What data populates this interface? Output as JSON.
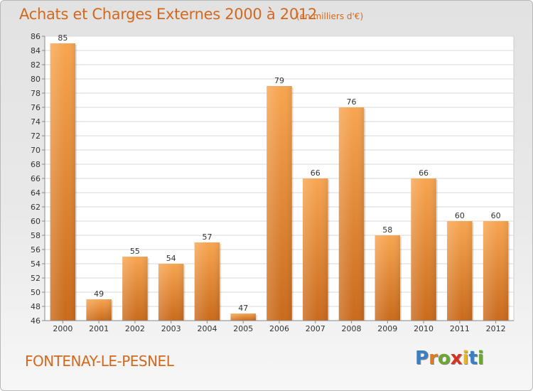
{
  "header": {
    "title": "Achats et Charges Externes 2000 à 2012",
    "subtitle": "(en milliers d'€)"
  },
  "footer": {
    "town": "FONTENAY-LE-PESNEL",
    "logo": [
      "P",
      "r",
      "o",
      "x",
      "i",
      "t",
      "i"
    ],
    "logo_colors": [
      "#3a7fc1",
      "#e07b1a",
      "#6aa832",
      "#d8331f",
      "#e9b51a",
      "#3a7fc1",
      "#6aa832"
    ]
  },
  "chart_data": {
    "type": "bar",
    "title": "Achats et Charges Externes 2000 à 2012",
    "subtitle": "(en milliers d'€)",
    "categories": [
      "2000",
      "2001",
      "2002",
      "2003",
      "2004",
      "2005",
      "2006",
      "2007",
      "2008",
      "2009",
      "2010",
      "2011",
      "2012"
    ],
    "values": [
      85,
      49,
      55,
      54,
      57,
      47,
      79,
      66,
      76,
      58,
      66,
      60,
      60
    ],
    "ylim": [
      46,
      86
    ],
    "yticks": [
      46,
      48,
      50,
      52,
      54,
      56,
      58,
      60,
      62,
      64,
      66,
      68,
      70,
      72,
      74,
      76,
      78,
      80,
      82,
      84,
      86
    ],
    "grid": true,
    "bar_color": "#f0963c",
    "bar_dark": "#c8661a",
    "xlabel": "",
    "ylabel": ""
  }
}
